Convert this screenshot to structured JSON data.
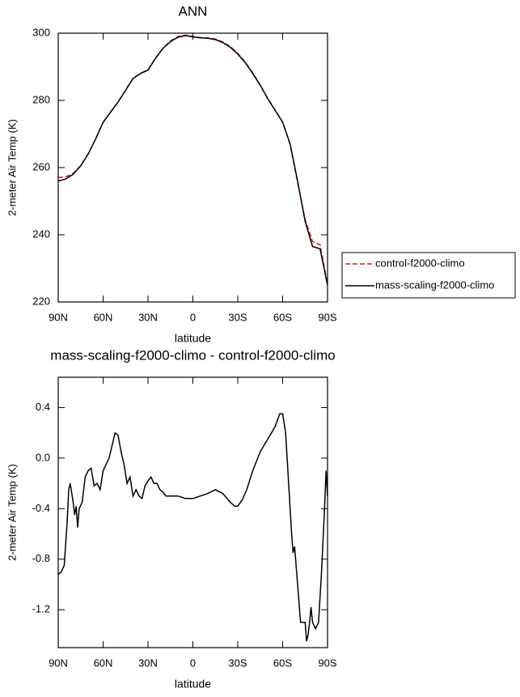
{
  "chart_data": [
    {
      "type": "line",
      "title": "ANN",
      "x_label": "latitude",
      "y_label": "2-meter Air Temp (K)",
      "x": [
        90,
        85,
        80,
        75,
        70,
        65,
        60,
        55,
        50,
        45,
        40,
        35,
        30,
        25,
        20,
        15,
        10,
        5,
        0,
        -5,
        -10,
        -15,
        -20,
        -25,
        -30,
        -35,
        -40,
        -45,
        -50,
        -55,
        -60,
        -65,
        -70,
        -75,
        -80,
        -85,
        -90
      ],
      "series": [
        {
          "name": "control-f2000-climo",
          "color": "#e41a1c",
          "dashed": true,
          "values": [
            257,
            257.2,
            258.3,
            260.6,
            264.1,
            268.6,
            273.4,
            276.6,
            279.6,
            283.1,
            286.6,
            288.1,
            289.1,
            292.6,
            295.6,
            297.7,
            299,
            299.4,
            299,
            298.7,
            298.6,
            298.3,
            297.4,
            296,
            294,
            291.4,
            288.2,
            284.6,
            280.6,
            277.1,
            273.5,
            266.8,
            255.5,
            244.5,
            238,
            237,
            225.2
          ]
        },
        {
          "name": "mass-scaling-f2000-climo",
          "color": "#000000",
          "dashed": false,
          "values": [
            256,
            256.6,
            258,
            260.5,
            264,
            268.5,
            273.5,
            276.5,
            279.5,
            283,
            286.5,
            288,
            289,
            292.5,
            295.5,
            297.5,
            298.8,
            299.3,
            298.9,
            298.6,
            298.5,
            298.1,
            297.2,
            295.8,
            293.8,
            291.2,
            288,
            284.5,
            280.5,
            277,
            273.5,
            267,
            256,
            244,
            236.5,
            235.8,
            225
          ]
        }
      ],
      "xlim": [
        90,
        -90
      ],
      "xticks": [
        {
          "value": 90,
          "label": "90N"
        },
        {
          "value": 60,
          "label": "60N"
        },
        {
          "value": 30,
          "label": "30N"
        },
        0,
        {
          "value": -30,
          "label": "30S"
        },
        {
          "value": -60,
          "label": "60S"
        },
        {
          "value": -90,
          "label": "90S"
        }
      ],
      "ylim": [
        220,
        300
      ],
      "yticks": [
        220,
        240,
        260,
        280,
        300
      ],
      "legend": "right"
    },
    {
      "type": "line",
      "title": "mass-scaling-f2000-climo - control-f2000-climo",
      "x_label": "latitude",
      "y_label": "2-meter Air Temp (K)",
      "x": [
        90,
        88,
        86,
        84,
        83,
        82,
        80,
        79,
        78,
        77,
        76,
        74,
        72,
        70,
        68,
        66,
        64,
        62,
        60,
        58,
        56,
        54,
        52,
        50,
        48,
        46,
        44,
        42,
        40,
        38,
        36,
        34,
        32,
        30,
        28,
        26,
        24,
        22,
        20,
        18,
        15,
        10,
        5,
        0,
        -5,
        -10,
        -15,
        -20,
        -25,
        -28,
        -30,
        -33,
        -36,
        -40,
        -45,
        -50,
        -55,
        -58,
        -60,
        -62,
        -64,
        -66,
        -67,
        -68,
        -70,
        -72,
        -74,
        -75,
        -76,
        -77,
        -78,
        -79,
        -80,
        -82,
        -84,
        -86,
        -88,
        -89,
        -90
      ],
      "series": [
        {
          "name": null,
          "color": "#000000",
          "dashed": false,
          "values": [
            -0.92,
            -0.9,
            -0.85,
            -0.5,
            -0.25,
            -0.2,
            -0.35,
            -0.45,
            -0.38,
            -0.55,
            -0.4,
            -0.35,
            -0.15,
            -0.1,
            -0.08,
            -0.22,
            -0.2,
            -0.25,
            -0.1,
            -0.05,
            0.0,
            0.1,
            0.2,
            0.18,
            0.05,
            -0.05,
            -0.2,
            -0.15,
            -0.3,
            -0.25,
            -0.3,
            -0.32,
            -0.22,
            -0.18,
            -0.15,
            -0.2,
            -0.2,
            -0.25,
            -0.27,
            -0.3,
            -0.3,
            -0.3,
            -0.32,
            -0.32,
            -0.3,
            -0.28,
            -0.25,
            -0.28,
            -0.35,
            -0.38,
            -0.38,
            -0.33,
            -0.25,
            -0.1,
            0.05,
            0.15,
            0.25,
            0.35,
            0.35,
            0.2,
            -0.2,
            -0.6,
            -0.75,
            -0.7,
            -1.0,
            -1.3,
            -1.3,
            -1.3,
            -1.45,
            -1.4,
            -1.3,
            -1.18,
            -1.3,
            -1.35,
            -1.3,
            -0.9,
            -0.4,
            -0.1,
            -0.3
          ]
        }
      ],
      "xlim": [
        90,
        -90
      ],
      "xticks": [
        {
          "value": 90,
          "label": "90N"
        },
        {
          "value": 60,
          "label": "60N"
        },
        {
          "value": 30,
          "label": "30N"
        },
        0,
        {
          "value": -30,
          "label": "30S"
        },
        {
          "value": -60,
          "label": "60S"
        },
        {
          "value": -90,
          "label": "90S"
        }
      ],
      "ylim": [
        -1.5,
        0.64
      ],
      "yticks": [
        {
          "value": -1.2,
          "label": "-1.2"
        },
        {
          "value": -0.8,
          "label": "-0.8"
        },
        {
          "value": -0.4,
          "label": "-0.4"
        },
        {
          "value": 0,
          "label": "0.0"
        },
        {
          "value": 0.4,
          "label": "0.4"
        }
      ]
    }
  ]
}
